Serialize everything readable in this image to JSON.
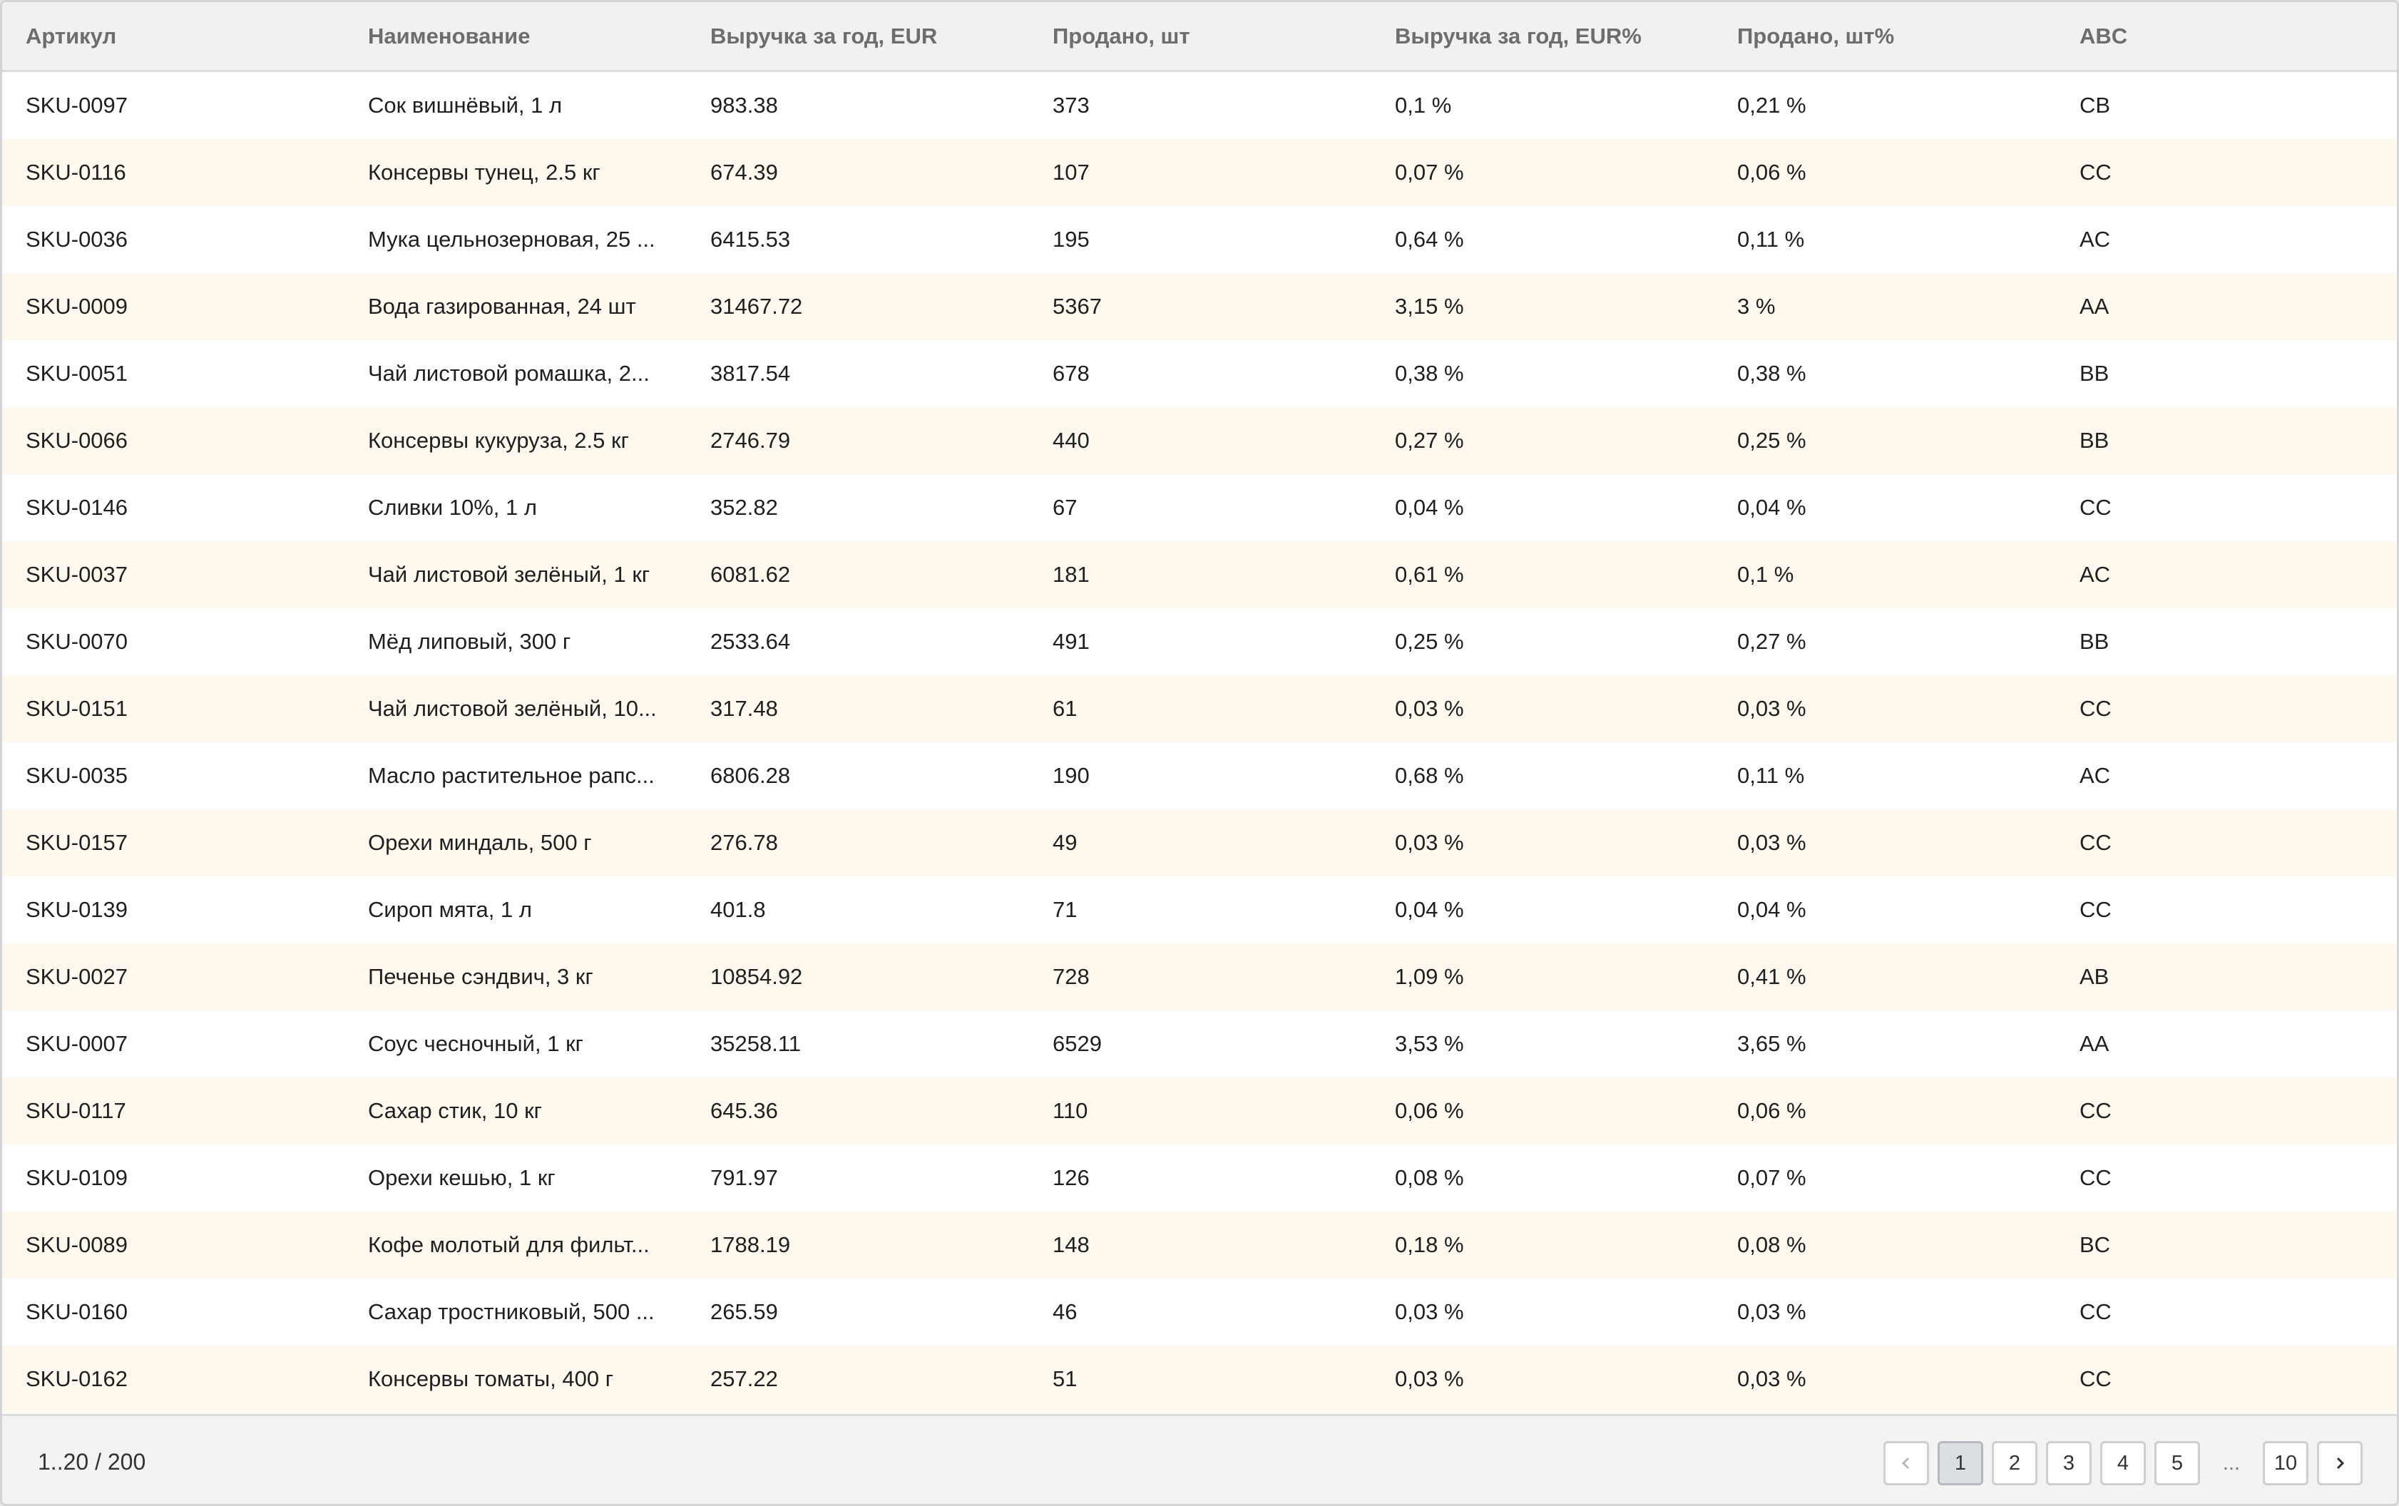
{
  "table": {
    "columns": [
      "Артикул",
      "Наименование",
      "Выручка за год, EUR",
      "Продано, шт",
      "Выручка за год, EUR%",
      "Продано, шт%",
      "ABC"
    ],
    "rows": [
      [
        "SKU-0097",
        "Сок вишнёвый, 1 л",
        "983.38",
        "373",
        "0,1 %",
        "0,21 %",
        "CB"
      ],
      [
        "SKU-0116",
        "Консервы тунец, 2.5 кг",
        "674.39",
        "107",
        "0,07 %",
        "0,06 %",
        "CC"
      ],
      [
        "SKU-0036",
        "Мука цельнозерновая, 25 ...",
        "6415.53",
        "195",
        "0,64 %",
        "0,11 %",
        "AC"
      ],
      [
        "SKU-0009",
        "Вода газированная, 24 шт",
        "31467.72",
        "5367",
        "3,15 %",
        "3 %",
        "AA"
      ],
      [
        "SKU-0051",
        "Чай листовой ромашка, 2...",
        "3817.54",
        "678",
        "0,38 %",
        "0,38 %",
        "BB"
      ],
      [
        "SKU-0066",
        "Консервы кукуруза, 2.5 кг",
        "2746.79",
        "440",
        "0,27 %",
        "0,25 %",
        "BB"
      ],
      [
        "SKU-0146",
        "Сливки 10%, 1 л",
        "352.82",
        "67",
        "0,04 %",
        "0,04 %",
        "CC"
      ],
      [
        "SKU-0037",
        "Чай листовой зелёный, 1 кг",
        "6081.62",
        "181",
        "0,61 %",
        "0,1 %",
        "AC"
      ],
      [
        "SKU-0070",
        "Мёд липовый, 300 г",
        "2533.64",
        "491",
        "0,25 %",
        "0,27 %",
        "BB"
      ],
      [
        "SKU-0151",
        "Чай листовой зелёный, 10...",
        "317.48",
        "61",
        "0,03 %",
        "0,03 %",
        "CC"
      ],
      [
        "SKU-0035",
        "Масло растительное рапс...",
        "6806.28",
        "190",
        "0,68 %",
        "0,11 %",
        "AC"
      ],
      [
        "SKU-0157",
        "Орехи миндаль, 500 г",
        "276.78",
        "49",
        "0,03 %",
        "0,03 %",
        "CC"
      ],
      [
        "SKU-0139",
        "Сироп мята, 1 л",
        "401.8",
        "71",
        "0,04 %",
        "0,04 %",
        "CC"
      ],
      [
        "SKU-0027",
        "Печенье сэндвич, 3 кг",
        "10854.92",
        "728",
        "1,09 %",
        "0,41 %",
        "AB"
      ],
      [
        "SKU-0007",
        "Соус чесночный, 1 кг",
        "35258.11",
        "6529",
        "3,53 %",
        "3,65 %",
        "AA"
      ],
      [
        "SKU-0117",
        "Сахар стик, 10 кг",
        "645.36",
        "110",
        "0,06 %",
        "0,06 %",
        "CC"
      ],
      [
        "SKU-0109",
        "Орехи кешью, 1 кг",
        "791.97",
        "126",
        "0,08 %",
        "0,07 %",
        "CC"
      ],
      [
        "SKU-0089",
        "Кофе молотый для фильт...",
        "1788.19",
        "148",
        "0,18 %",
        "0,08 %",
        "BC"
      ],
      [
        "SKU-0160",
        "Сахар тростниковый, 500 ...",
        "265.59",
        "46",
        "0,03 %",
        "0,03 %",
        "CC"
      ],
      [
        "SKU-0162",
        "Консервы томаты, 400 г",
        "257.22",
        "51",
        "0,03 %",
        "0,03 %",
        "CC"
      ]
    ]
  },
  "footer": {
    "range": "1..20 / 200",
    "pages": [
      "1",
      "2",
      "3",
      "4",
      "5"
    ],
    "ellipsis": "...",
    "last_page": "10",
    "current_page": "1",
    "prev_icon": "chevron-left-icon",
    "next_icon": "chevron-right-icon"
  }
}
